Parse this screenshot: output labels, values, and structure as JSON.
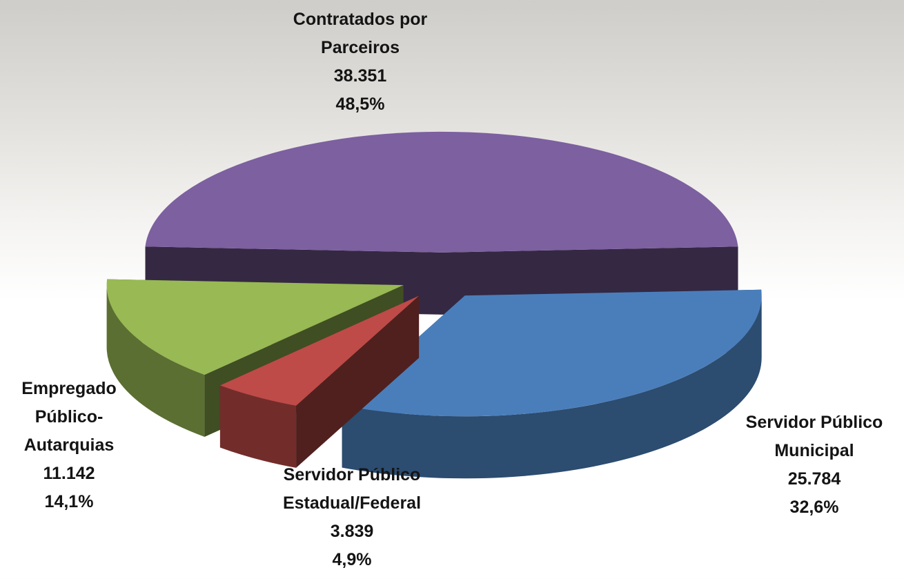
{
  "chart_data": {
    "type": "pie3d",
    "categories": [
      "Contratados por Parceiros",
      "Servidor Público Municipal",
      "Servidor Público Estadual/Federal",
      "Empregado Público-Autarquias"
    ],
    "values": [
      38351,
      25784,
      3839,
      11142
    ],
    "value_labels": [
      "38.351",
      "25.784",
      "3.839",
      "11.142"
    ],
    "percentages": [
      48.5,
      32.6,
      4.9,
      14.1
    ],
    "percentage_labels": [
      "48,5%",
      "32,6%",
      "4,9%",
      "14,1%"
    ],
    "colors": [
      "#7d60a0",
      "#4a7ebb",
      "#be4b48",
      "#98b954"
    ]
  }
}
